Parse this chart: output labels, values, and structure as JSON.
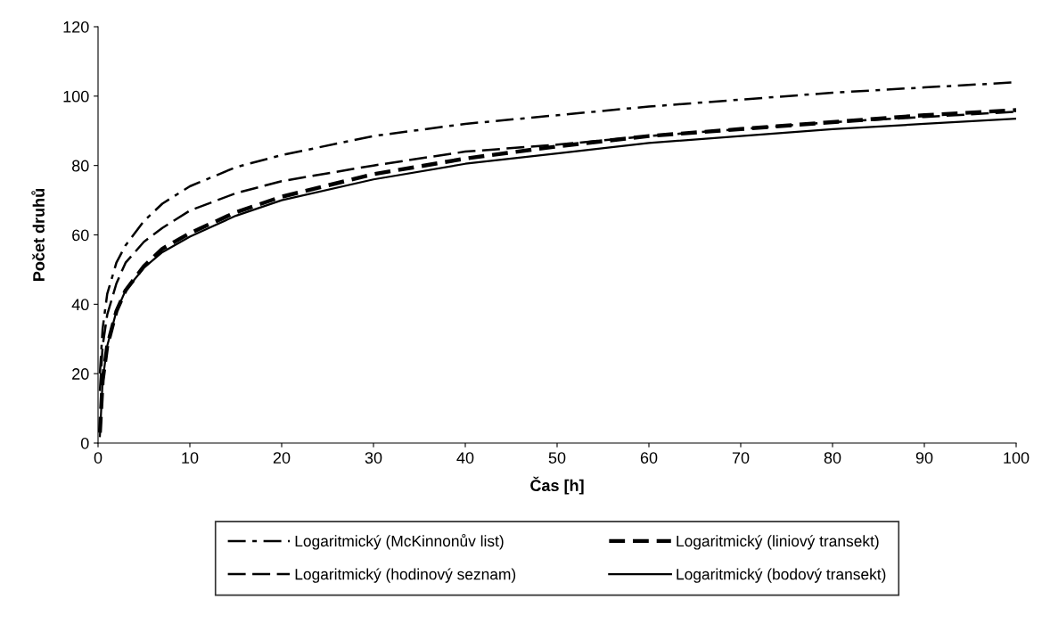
{
  "chart_data": {
    "type": "line",
    "xlabel": "Čas [h]",
    "ylabel": "Počet druhů",
    "x": [
      0.2,
      0.5,
      1,
      2,
      3,
      5,
      7,
      10,
      15,
      20,
      30,
      40,
      50,
      60,
      70,
      80,
      90,
      100
    ],
    "series": [
      {
        "name": "Logaritmický (McKinnonův list)",
        "color": "#000000",
        "line_style": "dashdot",
        "values": [
          20,
          33,
          43,
          52,
          57,
          64,
          69,
          74,
          79.5,
          83,
          88.5,
          92,
          94.5,
          97,
          99,
          101,
          102.5,
          104
        ]
      },
      {
        "name": "Logaritmický (hodinový seznam)",
        "color": "#000000",
        "line_style": "dashed",
        "values": [
          15,
          28,
          37,
          46,
          52,
          58,
          62,
          67,
          72,
          75.5,
          80,
          84,
          86,
          88.5,
          90.5,
          92.5,
          94,
          95.5
        ]
      },
      {
        "name": "Logaritmický (liniový transekt)",
        "color": "#000000",
        "line_style": "heavydashed",
        "values": [
          3,
          18,
          28,
          38,
          44,
          51,
          56,
          60.5,
          66.5,
          71,
          77.5,
          82,
          85.5,
          88.5,
          90.5,
          92.5,
          94.5,
          96
        ]
      },
      {
        "name": "Logaritmický (bodový transekt)",
        "color": "#000000",
        "line_style": "solid",
        "values": [
          2,
          18,
          28,
          38,
          44,
          50.5,
          55,
          59.5,
          65.5,
          70,
          76,
          80.5,
          83.5,
          86.5,
          88.5,
          90.5,
          92,
          93.5
        ]
      }
    ],
    "xlim": [
      0,
      100
    ],
    "xticks": [
      0,
      10,
      20,
      30,
      40,
      50,
      60,
      70,
      80,
      90,
      100
    ],
    "ylim": [
      0,
      120
    ],
    "yticks": [
      0,
      20,
      40,
      60,
      80,
      100,
      120
    ],
    "grid": false,
    "legend": "bottom",
    "marker": "none"
  }
}
